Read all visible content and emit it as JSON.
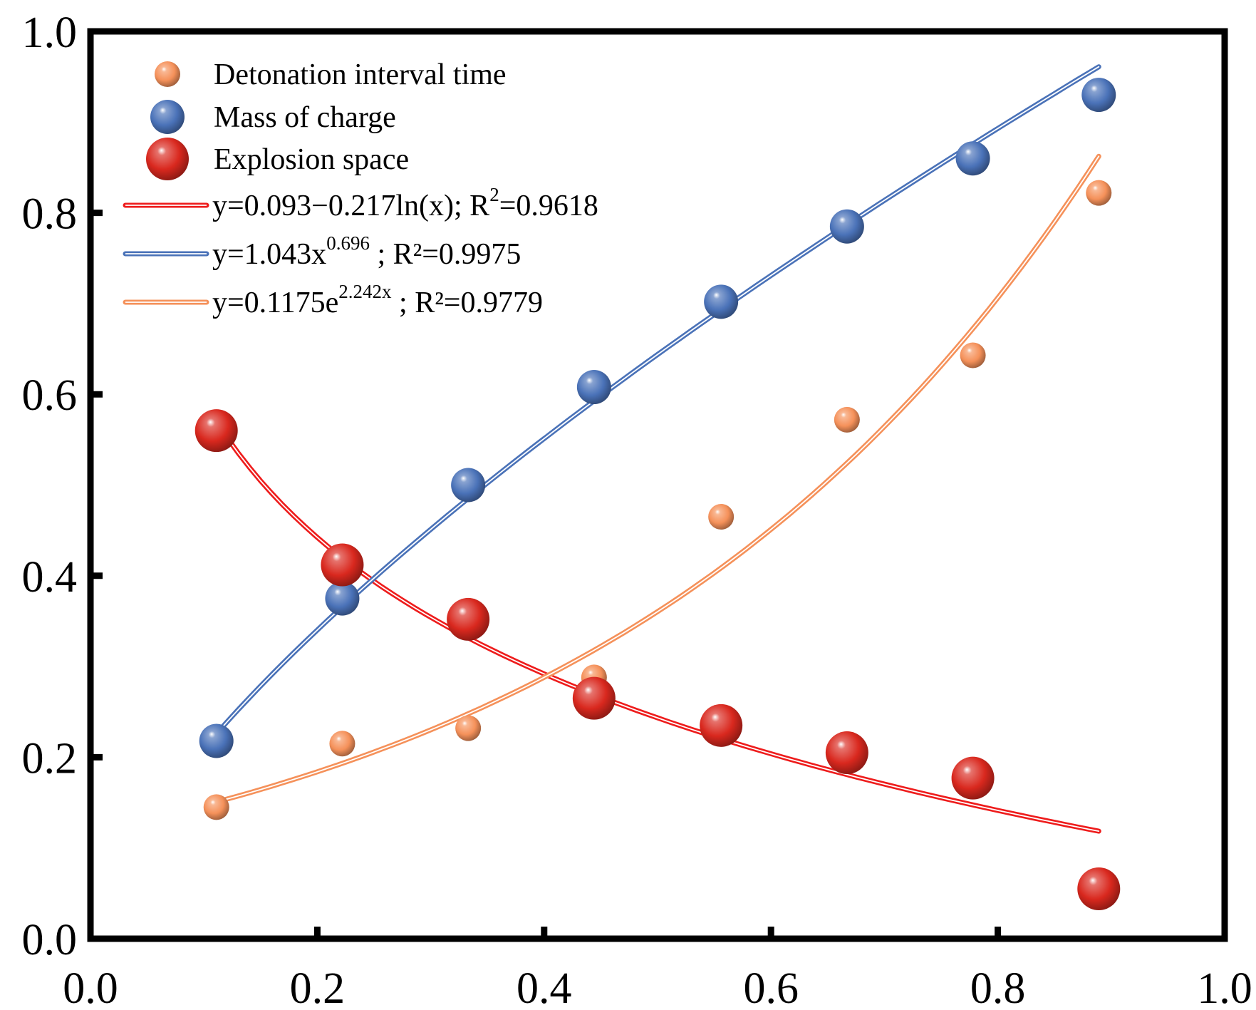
{
  "chart_data": {
    "type": "scatter",
    "title": "",
    "xlabel": "",
    "ylabel": "",
    "xlim": [
      0.0,
      1.0
    ],
    "ylim": [
      0.0,
      1.0
    ],
    "x_ticks": [
      "0.0",
      "0.2",
      "0.4",
      "0.6",
      "0.8",
      "1.0"
    ],
    "y_ticks": [
      "0.0",
      "0.2",
      "0.4",
      "0.6",
      "0.8",
      "1.0"
    ],
    "grid": false,
    "legend_position": "top-left",
    "series": [
      {
        "name": "Detonation interval time",
        "kind": "points",
        "color": "#f5915a",
        "x": [
          0.111,
          0.222,
          0.333,
          0.444,
          0.556,
          0.667,
          0.778,
          0.889
        ],
        "y": [
          0.145,
          0.215,
          0.232,
          0.288,
          0.465,
          0.572,
          0.643,
          0.822
        ]
      },
      {
        "name": "Mass of charge",
        "kind": "points",
        "color": "#4a72b8",
        "x": [
          0.111,
          0.222,
          0.333,
          0.444,
          0.556,
          0.667,
          0.778,
          0.889
        ],
        "y": [
          0.218,
          0.375,
          0.5,
          0.608,
          0.702,
          0.785,
          0.86,
          0.93
        ]
      },
      {
        "name": "Explosion space",
        "kind": "points",
        "color": "#d9281e",
        "x": [
          0.111,
          0.222,
          0.333,
          0.444,
          0.556,
          0.667,
          0.778,
          0.889
        ],
        "y": [
          0.56,
          0.412,
          0.352,
          0.265,
          0.235,
          0.205,
          0.177,
          0.055
        ]
      }
    ],
    "fits": [
      {
        "label_prefix": "y=0.093−0.217ln(x); R",
        "label_sup": "2",
        "label_suffix": "=0.9618",
        "model": "log",
        "a": 0.093,
        "b": -0.217,
        "color": "#ee1c1c",
        "x_range": [
          0.111,
          0.889
        ]
      },
      {
        "label_prefix": "y=1.043x",
        "label_sup": "0.696",
        "label_suffix": " ; R²=0.9975",
        "model": "power",
        "a": 1.043,
        "b": 0.696,
        "color": "#4a72b8",
        "x_range": [
          0.111,
          0.889
        ]
      },
      {
        "label_prefix": "y=0.1175e",
        "label_sup": "2.242x",
        "label_suffix": " ; R²=0.9779",
        "model": "exp",
        "a": 0.1175,
        "b": 2.242,
        "color": "#f5915a",
        "x_range": [
          0.111,
          0.889
        ]
      }
    ]
  }
}
